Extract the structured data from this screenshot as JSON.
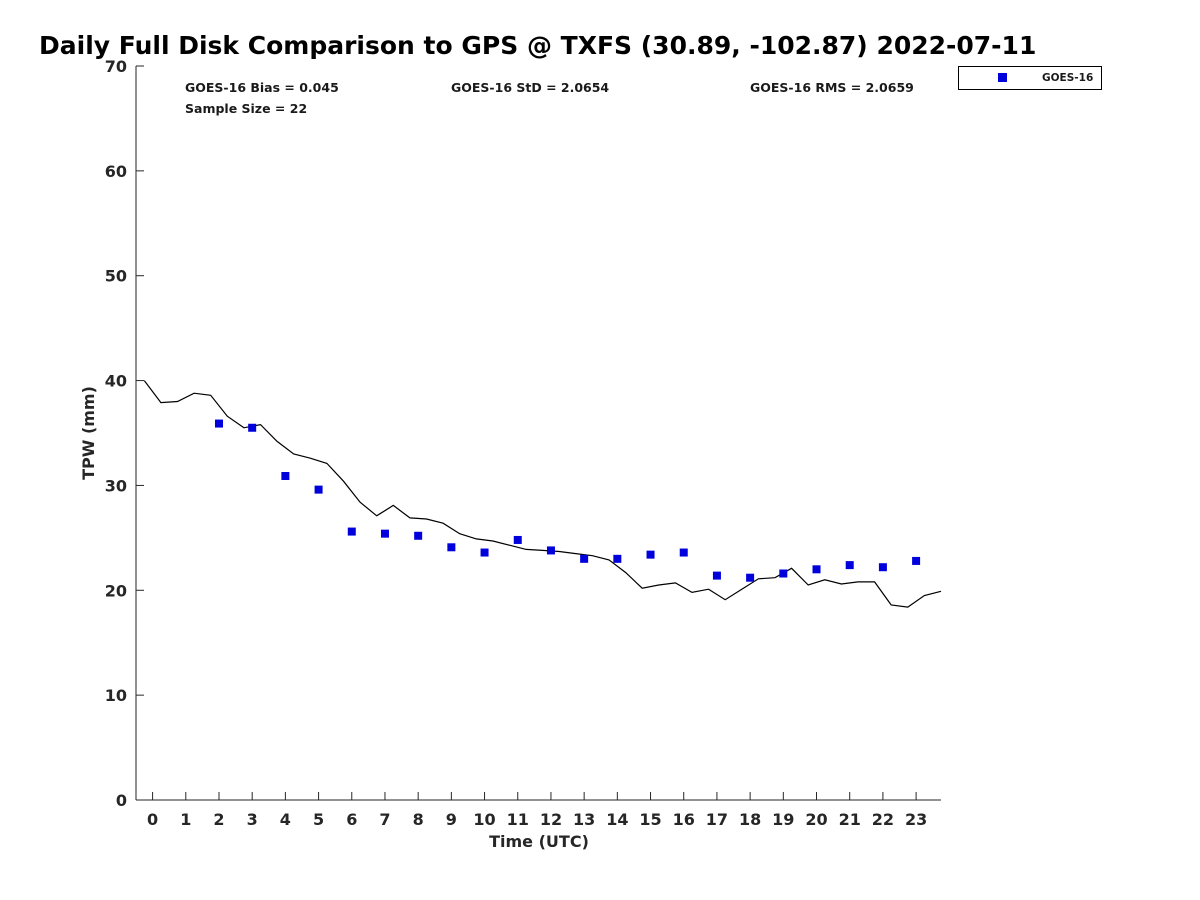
{
  "chart_data": {
    "type": "scatter",
    "title": "Daily Full Disk Comparison to GPS @ TXFS (30.89, -102.87) 2022-07-11",
    "xlabel": "Time (UTC)",
    "ylabel": "TPW (mm)",
    "xlim": [
      -0.5,
      23.75
    ],
    "ylim": [
      0,
      70
    ],
    "x_ticks": [
      0,
      1,
      2,
      3,
      4,
      5,
      6,
      7,
      8,
      9,
      10,
      11,
      12,
      13,
      14,
      15,
      16,
      17,
      18,
      19,
      20,
      21,
      22,
      23
    ],
    "y_ticks": [
      0,
      10,
      20,
      30,
      40,
      50,
      60,
      70
    ],
    "grid": false,
    "legend_position": "outside-top-right",
    "stats": {
      "bias": "GOES-16 Bias = 0.045",
      "sample_size": "Sample Size = 22",
      "std": "GOES-16 StD = 2.0654",
      "rms": "GOES-16 RMS = 2.0659"
    },
    "series": [
      {
        "name": "GOES-16",
        "marker": "square",
        "color": "#0000dd",
        "x": [
          2,
          3,
          4,
          5,
          6,
          7,
          8,
          9,
          10,
          11,
          12,
          13,
          14,
          15,
          16,
          17,
          18,
          19,
          20,
          21,
          22,
          23
        ],
        "y": [
          35.9,
          35.5,
          30.9,
          29.6,
          25.6,
          25.4,
          25.2,
          24.1,
          23.6,
          24.8,
          23.8,
          23.0,
          23.0,
          23.4,
          23.6,
          21.4,
          21.2,
          21.6,
          22.0,
          22.4,
          22.2,
          22.8
        ]
      },
      {
        "marker": "line",
        "color": "#000000",
        "x": [
          -0.25,
          0.25,
          0.75,
          1.25,
          1.75,
          2.25,
          2.75,
          3.25,
          3.75,
          4.25,
          4.75,
          5.25,
          5.75,
          6.25,
          6.75,
          7.25,
          7.75,
          8.25,
          8.75,
          9.25,
          9.75,
          10.25,
          10.75,
          11.25,
          11.75,
          12.25,
          12.75,
          13.25,
          13.75,
          14.25,
          14.75,
          15.25,
          15.75,
          16.25,
          16.75,
          17.25,
          17.75,
          18.25,
          18.75,
          19.25,
          19.75,
          20.25,
          20.75,
          21.25,
          21.75,
          22.25,
          22.75,
          23.25,
          23.75
        ],
        "y": [
          40.0,
          37.9,
          38.0,
          38.8,
          38.6,
          36.6,
          35.5,
          35.8,
          34.2,
          33.0,
          32.6,
          32.1,
          30.4,
          28.4,
          27.1,
          28.1,
          26.9,
          26.8,
          26.4,
          25.4,
          24.9,
          24.7,
          24.3,
          23.9,
          23.8,
          23.7,
          23.5,
          23.3,
          22.9,
          21.7,
          20.2,
          20.5,
          20.7,
          19.8,
          20.1,
          19.1,
          20.1,
          21.1,
          21.2,
          22.1,
          20.5,
          21.0,
          20.6,
          20.8,
          20.8,
          18.6,
          18.4,
          19.5,
          19.9
        ]
      }
    ]
  }
}
